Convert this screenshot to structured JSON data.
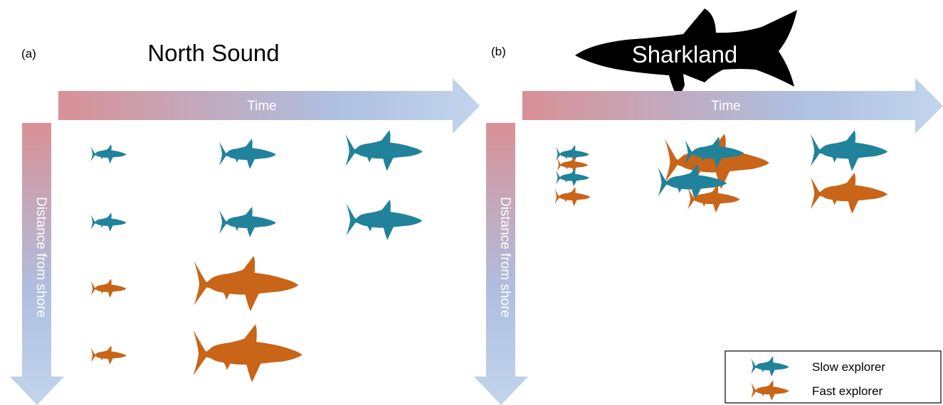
{
  "panels": [
    {
      "label": "(a)",
      "site": "North Sound",
      "time_axis": "Time",
      "distance_axis": "Distance from shore"
    },
    {
      "label": "(b)",
      "site": "Sharkland",
      "time_axis": "Time",
      "distance_axis": "Distance from shore"
    }
  ],
  "legend": {
    "items": [
      {
        "label": "Slow explorer",
        "color": "#21829b"
      },
      {
        "label": "Fast explorer",
        "color": "#c86518"
      }
    ]
  },
  "colors": {
    "slow": "#21829b",
    "fast": "#c86518",
    "arrow_start": "#d99196",
    "arrow_end": "#b4c9e6",
    "silhouette": "#000000"
  }
}
